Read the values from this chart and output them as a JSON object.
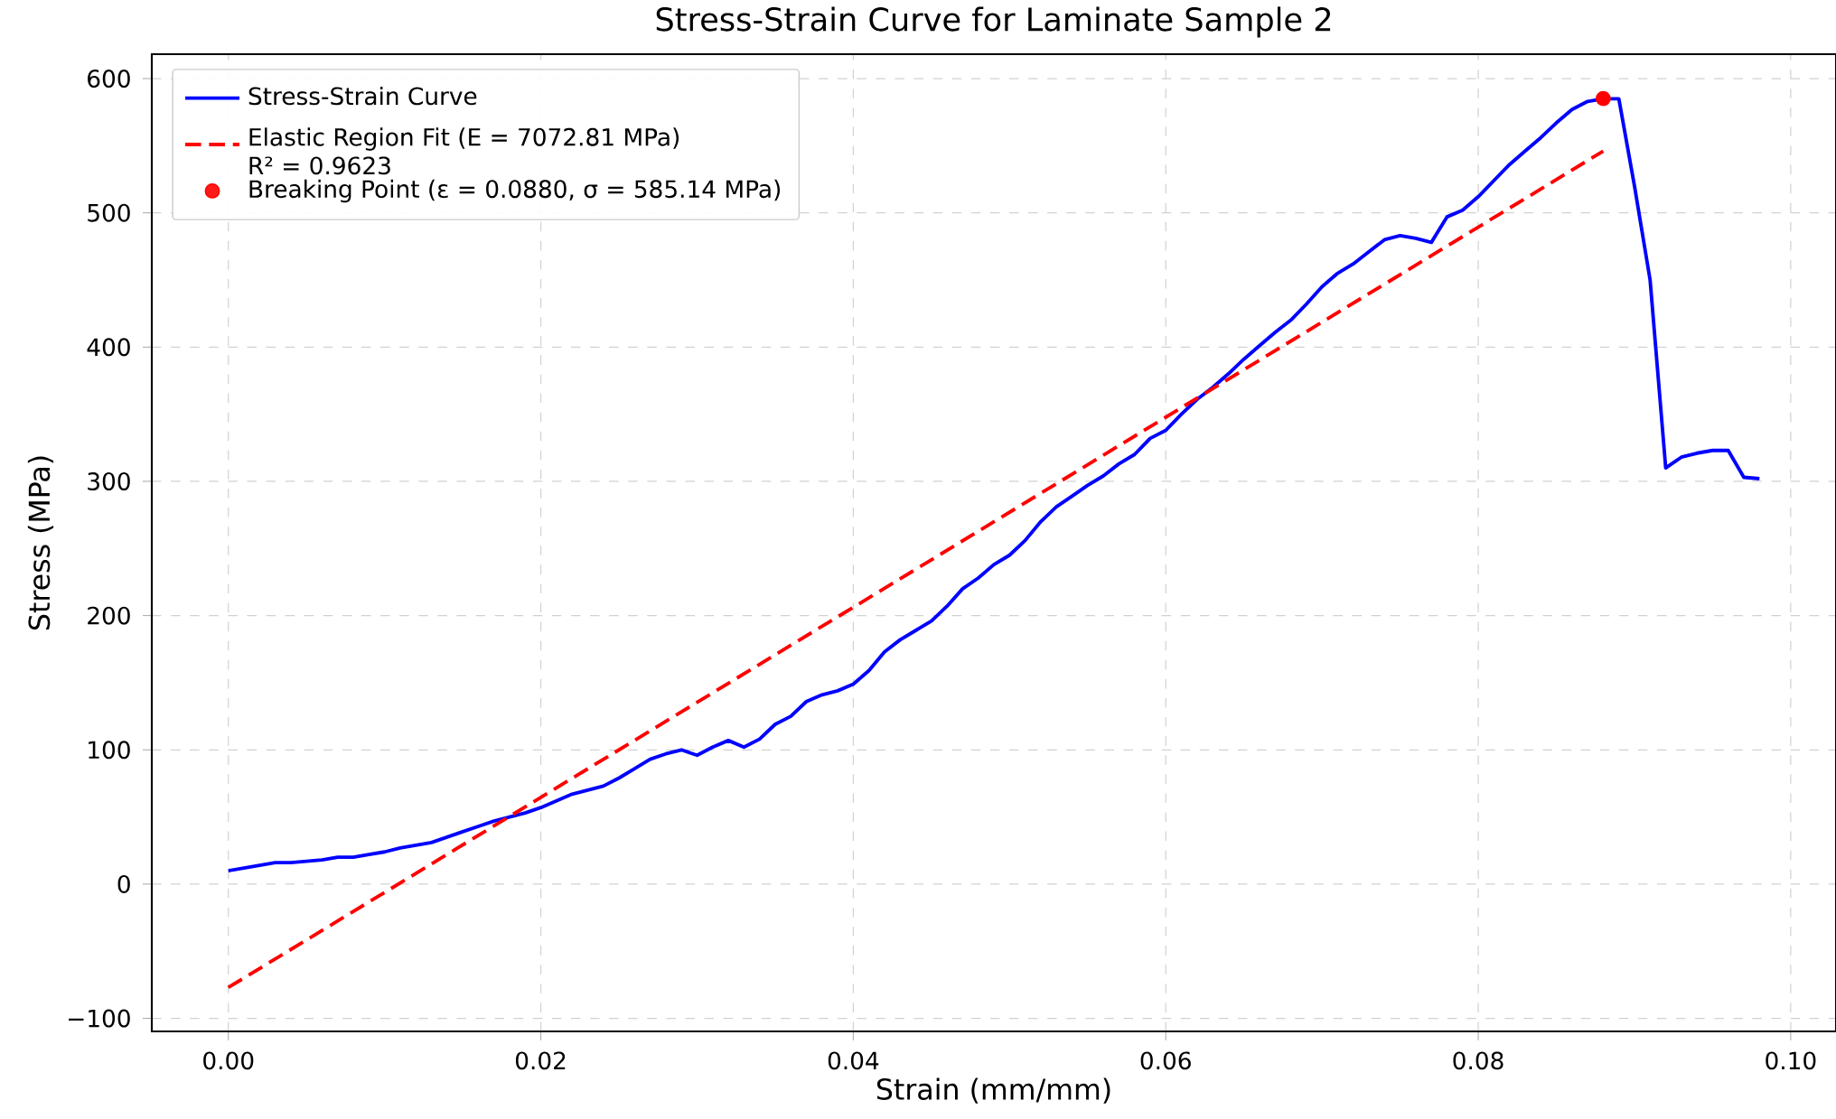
{
  "chart_data": {
    "type": "line",
    "title": "Stress-Strain Curve for Laminate Sample 2",
    "xlabel": "Strain (mm/mm)",
    "ylabel": "Stress (MPa)",
    "xlim": [
      -0.0049,
      0.1029
    ],
    "ylim": [
      -109.7,
      618.2
    ],
    "xticks": [
      {
        "value": 0,
        "label": "0.00"
      },
      {
        "value": 0.02,
        "label": "0.02"
      },
      {
        "value": 0.04,
        "label": "0.04"
      },
      {
        "value": 0.06,
        "label": "0.06"
      },
      {
        "value": 0.08,
        "label": "0.08"
      },
      {
        "value": 0.1,
        "label": "0.10"
      }
    ],
    "yticks": [
      {
        "value": -100,
        "label": "−100"
      },
      0,
      100,
      200,
      300,
      400,
      500,
      600
    ],
    "grid": true,
    "legend": "top left",
    "series": [
      {
        "name": "Stress-Strain Curve",
        "color": "#0000ff",
        "line_style": "solid",
        "x": [
          0,
          0.001,
          0.002,
          0.003,
          0.004,
          0.005,
          0.006,
          0.007,
          0.008,
          0.009,
          0.01,
          0.011,
          0.012,
          0.013,
          0.014,
          0.015,
          0.016,
          0.017,
          0.018,
          0.019,
          0.02,
          0.021,
          0.022,
          0.023,
          0.024,
          0.025,
          0.026,
          0.027,
          0.028,
          0.029,
          0.03,
          0.031,
          0.032,
          0.033,
          0.034,
          0.035,
          0.036,
          0.037,
          0.038,
          0.039,
          0.04,
          0.041,
          0.042,
          0.043,
          0.044,
          0.045,
          0.046,
          0.047,
          0.048,
          0.049,
          0.05,
          0.051,
          0.052,
          0.053,
          0.054,
          0.055,
          0.056,
          0.057,
          0.058,
          0.059,
          0.06,
          0.061,
          0.062,
          0.063,
          0.064,
          0.065,
          0.066,
          0.067,
          0.068,
          0.069,
          0.07,
          0.071,
          0.072,
          0.073,
          0.074,
          0.075,
          0.076,
          0.077,
          0.078,
          0.079,
          0.08,
          0.081,
          0.082,
          0.083,
          0.084,
          0.085,
          0.086,
          0.087,
          0.088,
          0.089,
          0.09,
          0.091,
          0.092,
          0.093,
          0.094,
          0.095,
          0.096,
          0.097,
          0.098
        ],
        "values": [
          10,
          12,
          14,
          16,
          16,
          17,
          18,
          20,
          20,
          22,
          24,
          27,
          29,
          31,
          35,
          39,
          43,
          47,
          50,
          53,
          57,
          62,
          67,
          70,
          73,
          79,
          86,
          93,
          97,
          100,
          96,
          102,
          107,
          102,
          108,
          119,
          125,
          136,
          141,
          144,
          149,
          159,
          173,
          182,
          189,
          196,
          207,
          220,
          228,
          238,
          245,
          256,
          270,
          281,
          289,
          297,
          304,
          313,
          320,
          332,
          338,
          350,
          361,
          370,
          380,
          391,
          401,
          411,
          420,
          432,
          445,
          455,
          462,
          471,
          480,
          483,
          481,
          478,
          497,
          502,
          512,
          524,
          536,
          546,
          556,
          567,
          577,
          583,
          585,
          585,
          520,
          450,
          310,
          318,
          321,
          323,
          323,
          303,
          302
        ]
      },
      {
        "name": "Elastic Region Fit (E = 7072.81 MPa) R² = 0.9623",
        "color": "#ff0000",
        "line_style": "dashed",
        "x": [
          0,
          0.088
        ],
        "values": [
          -77,
          546
        ]
      },
      {
        "name": "Breaking Point (ε = 0.0880, σ = 585.14 MPa)",
        "type": "scatter",
        "color": "#ff0000",
        "marker": "circle",
        "x": [
          0.088
        ],
        "values": [
          585.14
        ]
      }
    ]
  }
}
